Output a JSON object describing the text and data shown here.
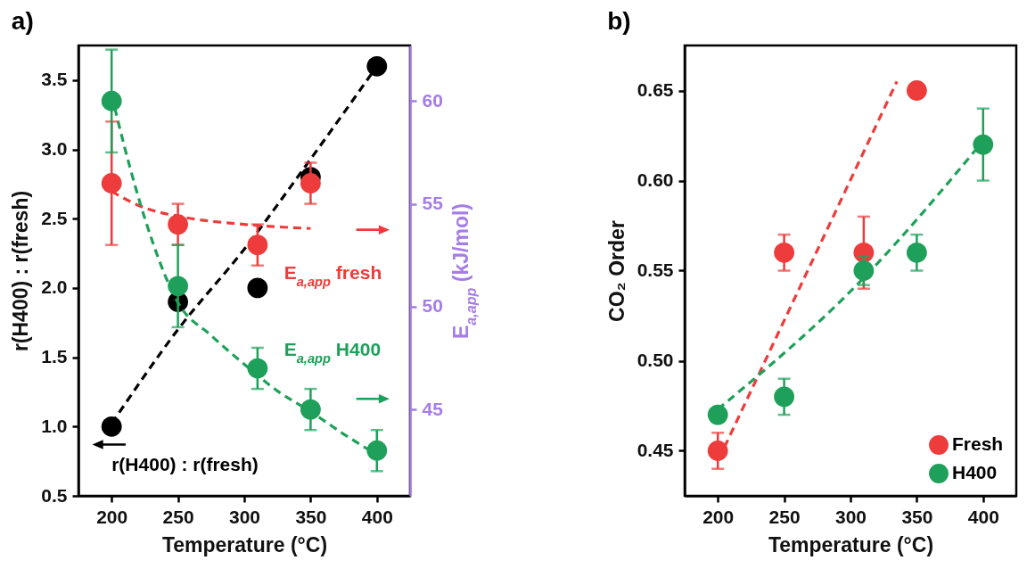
{
  "chart_data": [
    {
      "type": "scatter",
      "title": "a)",
      "xlabel": "Temperature (°C)",
      "ylabel": "r(H400) : r(fresh)",
      "y2label": "E$_{a,app}$ (kJ/mol)",
      "xlim": [
        175,
        425
      ],
      "xticks": [
        200,
        250,
        300,
        350,
        400
      ],
      "ylim": [
        0.5,
        3.75
      ],
      "yticks": [
        0.5,
        {
          "value": 1,
          "label": "1.0"
        },
        1.5,
        {
          "value": 2,
          "label": "2.0"
        },
        2.5,
        {
          "value": 3,
          "label": "3.0"
        },
        3.5
      ],
      "y2lim": [
        40.8,
        62.7
      ],
      "y2ticks": [
        45,
        50,
        55,
        60
      ],
      "marker": "circle",
      "line_style": "dashed",
      "grid": false,
      "legend": false,
      "annotations": [
        "E$_{a,app}$ fresh",
        "E$_{a,app}$ H400",
        "r(H400) : r(fresh)"
      ],
      "series": [
        {
          "type": "line",
          "marker": "none",
          "color": "#000000",
          "x": [
            200,
            250,
            300,
            350,
            400
          ],
          "values": [
            1.02,
            1.7,
            2.28,
            2.93,
            3.6
          ]
        },
        {
          "type": "line",
          "marker": "none",
          "color": "#ee3b3b",
          "axis": "y2",
          "x": [
            200,
            225,
            250,
            300,
            350
          ],
          "values": [
            55.6,
            54.8,
            54.4,
            54.0,
            53.8
          ]
        },
        {
          "type": "line",
          "marker": "none",
          "color": "#1fa05a",
          "axis": "y2",
          "x": [
            200,
            210,
            225,
            250,
            275,
            300,
            325,
            350,
            375,
            400
          ],
          "values": [
            60.3,
            57.7,
            54.3,
            50.2,
            48.6,
            47.2,
            45.9,
            44.9,
            43.8,
            42.8
          ]
        },
        {
          "color": "#000000",
          "x": [
            200,
            250,
            310,
            350,
            400
          ],
          "values": [
            1.0,
            1.9,
            2.0,
            2.8,
            3.6
          ]
        },
        {
          "color": "#ee3b3b",
          "axis": "y2",
          "x": [
            200,
            250,
            310,
            350
          ],
          "values": [
            56,
            54,
            53,
            56
          ],
          "errors": [
            3,
            1,
            1,
            1
          ]
        },
        {
          "color": "#1fa05a",
          "axis": "y2",
          "x": [
            200,
            250,
            310,
            350,
            400
          ],
          "values": [
            60,
            51,
            47,
            45,
            43
          ],
          "errors": [
            2.5,
            2,
            1,
            1,
            1
          ]
        }
      ]
    },
    {
      "type": "scatter",
      "title": "b)",
      "xlabel": "Temperature (°C)",
      "ylabel": "CO₂ Order",
      "xlim": [
        175,
        425
      ],
      "xticks": [
        200,
        250,
        300,
        350,
        400
      ],
      "ylim": [
        0.425,
        0.675
      ],
      "yticks": [
        0.45,
        {
          "value": 0.5,
          "label": "0.50"
        },
        0.55,
        {
          "value": 0.6,
          "label": "0.60"
        },
        0.65
      ],
      "marker": "circle",
      "line_style": "dashed",
      "grid": false,
      "legend": "bottom right",
      "series": [
        {
          "type": "line",
          "marker": "none",
          "color": "#ee3b3b",
          "x": [
            205,
            335
          ],
          "values": [
            0.452,
            0.655
          ]
        },
        {
          "type": "line",
          "marker": "none",
          "color": "#1fa05a",
          "x": [
            200,
            310,
            400
          ],
          "values": [
            0.473,
            0.546,
            0.622
          ]
        },
        {
          "name": "Fresh",
          "color": "#ee3b3b",
          "x": [
            200,
            250,
            310,
            350
          ],
          "values": [
            0.45,
            0.56,
            0.56,
            0.65
          ],
          "errors": [
            0.01,
            0.01,
            0.02,
            null
          ]
        },
        {
          "name": "H400",
          "color": "#1fa05a",
          "x": [
            200,
            250,
            310,
            350,
            400
          ],
          "values": [
            0.47,
            0.48,
            0.55,
            0.56,
            0.62
          ],
          "errors": [
            null,
            0.01,
            0.008,
            0.01,
            0.02
          ]
        }
      ]
    }
  ]
}
